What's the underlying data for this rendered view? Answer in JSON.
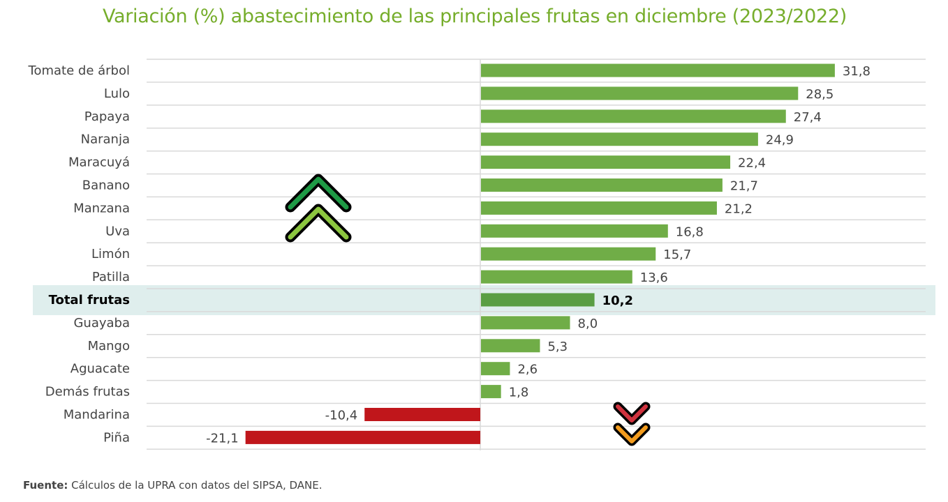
{
  "chart_data": {
    "type": "bar",
    "orientation": "horizontal",
    "title": "Variación (%) abastecimiento de las principales frutas en diciembre (2023/2022)",
    "categories": [
      "Tomate de árbol",
      "Lulo",
      "Papaya",
      "Naranja",
      "Maracuyá",
      "Banano",
      "Manzana",
      "Uva",
      "Limón",
      "Patilla",
      "Total frutas",
      "Guayaba",
      "Mango",
      "Aguacate",
      "Demás frutas",
      "Mandarina",
      "Piña"
    ],
    "values": [
      31.8,
      28.5,
      27.4,
      24.9,
      22.4,
      21.7,
      21.2,
      16.8,
      15.7,
      13.6,
      10.2,
      8.0,
      5.3,
      2.6,
      1.8,
      -10.4,
      -21.1
    ],
    "value_labels": [
      "31,8",
      "28,5",
      "27,4",
      "24,9",
      "22,4",
      "21,7",
      "21,2",
      "16,8",
      "15,7",
      "13,6",
      "10,2",
      "8,0",
      "5,3",
      "2,6",
      "1,8",
      "-10,4",
      "-21,1"
    ],
    "highlight": "Total frutas",
    "xlabel": "",
    "ylabel": "",
    "xlim": [
      -32,
      40
    ],
    "grid": true,
    "colors": {
      "positive": "#70ad47",
      "total": "#5a9e44",
      "negative": "#c0161b",
      "highlight_band": "#dfeeed",
      "title": "#76ad2b"
    }
  },
  "footer": {
    "label": "Fuente:",
    "text": " Cálculos de la UPRA con datos del SIPSA, DANE."
  },
  "decorations": {
    "up_arrows": [
      "#1e9a45",
      "#8cc63f"
    ],
    "down_arrows": [
      "#d0333f",
      "#f39c1e"
    ]
  }
}
